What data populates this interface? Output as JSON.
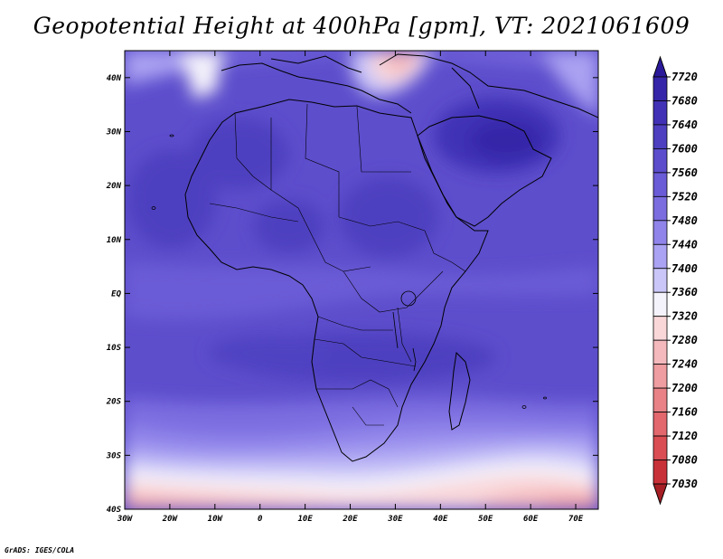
{
  "title": "Geopotential Height at 400hPa [gpm], VT: 2021061609",
  "credit": "GrADS: IGES/COLA",
  "map": {
    "lon_range": [
      -30,
      75
    ],
    "lat_range": [
      -40,
      45
    ],
    "x_ticks": [
      "30W",
      "20W",
      "10W",
      "0",
      "10E",
      "20E",
      "30E",
      "40E",
      "50E",
      "60E",
      "70E"
    ],
    "y_ticks": [
      "40S",
      "30S",
      "20S",
      "10S",
      "EQ",
      "10N",
      "20N",
      "30N",
      "40N"
    ]
  },
  "colorbar": {
    "levels": [
      "7720",
      "7680",
      "7640",
      "7600",
      "7560",
      "7520",
      "7480",
      "7440",
      "7400",
      "7360",
      "7320",
      "7280",
      "7240",
      "7200",
      "7160",
      "7120",
      "7080",
      "7030"
    ],
    "colors": [
      "#2a1a9a",
      "#3525a8",
      "#4131b6",
      "#4d3fc0",
      "#5b4dcc",
      "#6a5bd6",
      "#7b6de0",
      "#9084ea",
      "#aaa2f2",
      "#cac6f8",
      "#f4f2fb",
      "#f9d7d9",
      "#f4b9bc",
      "#ef9da0",
      "#e88286",
      "#e2686d",
      "#d94d53",
      "#c93138",
      "#a51f25"
    ]
  }
}
